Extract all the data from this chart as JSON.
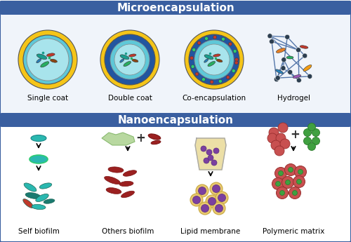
{
  "title_micro": "Microencapsulation",
  "title_nano": "Nanoencapsulation",
  "title_bg": "#3a5fa0",
  "title_text_color": "white",
  "panel_bg_top": "#f0f4fa",
  "panel_bg_bottom": "white",
  "border_color": "#3a5fa0",
  "labels_micro": [
    "Single coat",
    "Double coat",
    "Co-encapsulation",
    "Hydrogel"
  ],
  "labels_nano": [
    "Self biofilm",
    "Others biofilm",
    "Lipid membrane",
    "Polymeric matrix"
  ],
  "colors": {
    "gold": "#f5c518",
    "blue_outer": "#2255a0",
    "teal_inner": "#5ec8d8",
    "light_teal": "#a8e4ec",
    "bacteria_red": "#c0392b",
    "bacteria_green": "#27ae60",
    "bacteria_dark": "#5d3a1a",
    "bacteria_teal": "#1a9c8c",
    "bacteria_blue": "#2980b9",
    "node_color": "#2c3e50",
    "hydrogel_line": "#5577aa",
    "biofilm_teal": "#2ab8b0",
    "biofilm_dark": "#1a7a70",
    "biofilm_red": "#c0392b",
    "others_red": "#9b2020",
    "lipid_gold": "#e8c870",
    "lipid_purple": "#7b3fa0",
    "poly_red": "#c85050",
    "poly_green": "#40a040",
    "green_cloud": "#b8d8a0",
    "arrow_color": "#222222"
  }
}
